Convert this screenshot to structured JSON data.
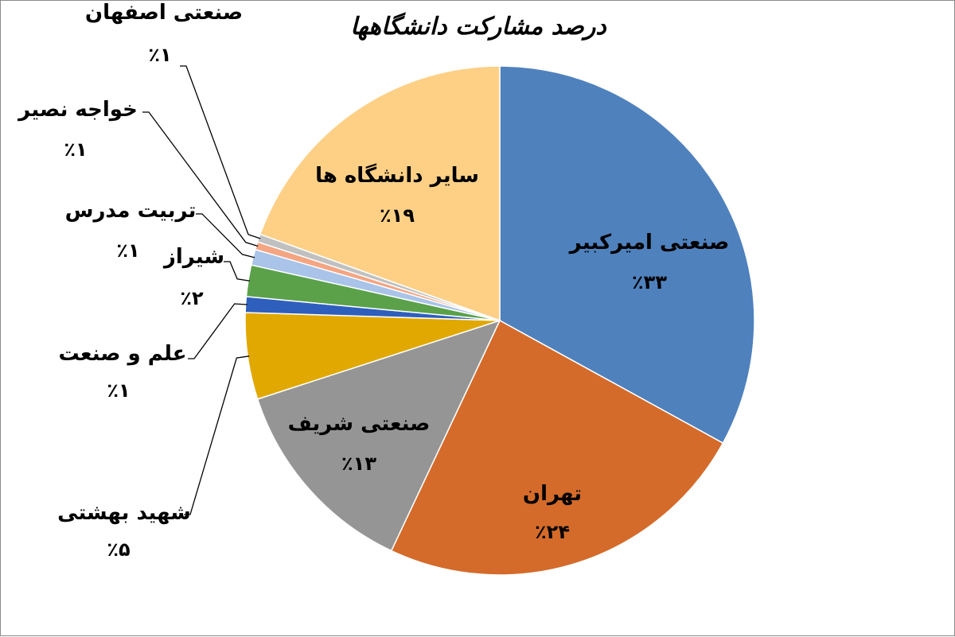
{
  "chart_data": {
    "type": "pie",
    "title": "درصد مشارکت دانشگاهها",
    "slices": [
      {
        "label": "صنعتی امیرکبیر",
        "value_text": "٪۳۳",
        "value": 33,
        "color": "#4f81bd"
      },
      {
        "label": "تهران",
        "value_text": "٪۲۴",
        "value": 24,
        "color": "#d46b2a"
      },
      {
        "label": "صنعتی شریف",
        "value_text": "٪۱۳",
        "value": 13,
        "color": "#959595"
      },
      {
        "label": "شهید بهشتی",
        "value_text": "٪۵",
        "value": 5.5,
        "color": "#e0a800"
      },
      {
        "label": "علم و صنعت",
        "value_text": "٪۱",
        "value": 1,
        "color": "#2f5fbd"
      },
      {
        "label": "شیراز",
        "value_text": "٪۲",
        "value": 2,
        "color": "#5aa14a"
      },
      {
        "label": "تربیت مدرس",
        "value_text": "٪۱",
        "value": 1,
        "color": "#a9c4e8"
      },
      {
        "label": "خواجه نصیر",
        "value_text": "٪۱",
        "value": 0.5,
        "color": "#f4a582"
      },
      {
        "label": "صنعتی اصفهان",
        "value_text": "٪۱",
        "value": 0.5,
        "color": "#c0c0c0"
      },
      {
        "label": "سایر دانشگاه ها",
        "value_text": "٪۱۹",
        "value": 19.5,
        "color": "#fdd086"
      }
    ]
  }
}
